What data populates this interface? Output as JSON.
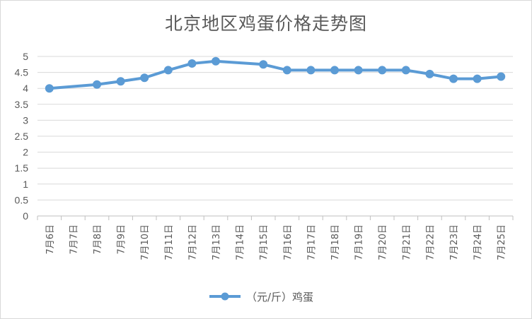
{
  "title": "北京地区鸡蛋价格走势图",
  "chart_data": {
    "type": "line",
    "title": "北京地区鸡蛋价格走势图",
    "categories": [
      "7月6日",
      "7月7日",
      "7月8日",
      "7月9日",
      "7月10日",
      "7月11日",
      "7月12日",
      "7月13日",
      "7月14日",
      "7月15日",
      "7月16日",
      "7月17日",
      "7月18日",
      "7月19日",
      "7月20日",
      "7月21日",
      "7月22日",
      "7月23日",
      "7月24日",
      "7月25日"
    ],
    "series": [
      {
        "name": "（元/斤）鸡蛋",
        "values": [
          4.0,
          null,
          4.12,
          4.22,
          4.33,
          4.57,
          4.78,
          4.85,
          null,
          4.75,
          4.57,
          4.57,
          4.57,
          4.57,
          4.57,
          4.57,
          4.45,
          4.3,
          4.3,
          4.37
        ],
        "color": "#5b9bd5"
      }
    ],
    "yticks": [
      "0",
      "0.5",
      "1",
      "1.5",
      "2",
      "2.5",
      "3",
      "3.5",
      "4",
      "4.5",
      "5"
    ],
    "ylim": [
      0,
      5
    ],
    "grid": true,
    "legend_position": "bottom"
  }
}
